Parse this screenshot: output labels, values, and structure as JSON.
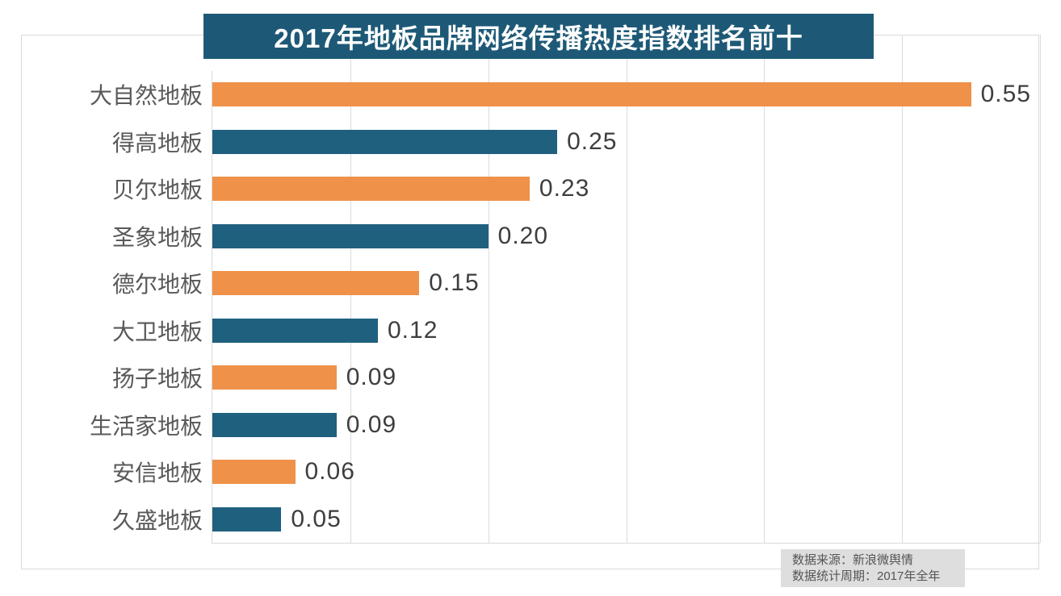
{
  "title": "2017年地板品牌网络传播热度指数排名前十",
  "chart_data": {
    "type": "bar",
    "orientation": "horizontal",
    "title": "2017年地板品牌网络传播热度指数排名前十",
    "categories": [
      "大自然地板",
      "得高地板",
      "贝尔地板",
      "圣象地板",
      "德尔地板",
      "大卫地板",
      "扬子地板",
      "生活家地板",
      "安信地板",
      "久盛地板"
    ],
    "values": [
      0.55,
      0.25,
      0.23,
      0.2,
      0.15,
      0.12,
      0.09,
      0.09,
      0.06,
      0.05
    ],
    "value_labels": [
      "0.55",
      "0.25",
      "0.23",
      "0.20",
      "0.15",
      "0.12",
      "0.09",
      "0.09",
      "0.06",
      "0.05"
    ],
    "xlim": [
      0,
      0.6
    ],
    "gridline_interval": 0.1,
    "grid": true,
    "legend": false,
    "xlabel": "",
    "ylabel": "",
    "series_colors": [
      "#ef9149",
      "#20607f"
    ],
    "colors": {
      "title_bg": "#1d5977",
      "title_text": "#ffffff",
      "orange_bar": "#ef9149",
      "teal_bar": "#20607f",
      "gridline": "#dcdcdc",
      "category_label": "#595959",
      "value_label": "#3e3e3e",
      "source_box_bg": "#dedede"
    }
  },
  "source": {
    "line1": "数据来源：新浪微舆情",
    "line2": "数据统计周期：2017年全年"
  }
}
